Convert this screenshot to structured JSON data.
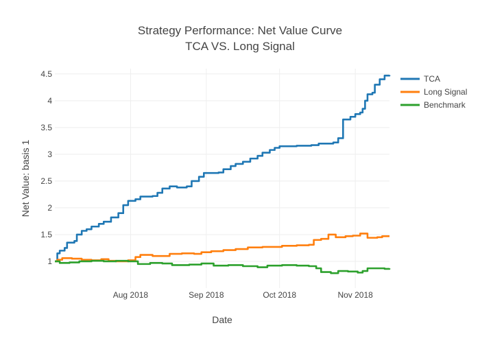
{
  "chart_data": {
    "type": "line",
    "title": "Strategy Performance: Net Value Curve",
    "subtitle": "TCA VS. Long Signal",
    "xlabel": "Date",
    "ylabel": "Net Value: basis 1",
    "xlim": [
      "2018-07-01",
      "2018-11-15"
    ],
    "ylim": [
      0.5,
      4.6
    ],
    "x_ticks": [
      "2018-08-01",
      "2018-09-01",
      "2018-10-01",
      "2018-11-01"
    ],
    "x_tick_labels": [
      "Aug 2018",
      "Sep 2018",
      "Oct 2018",
      "Nov 2018"
    ],
    "y_ticks": [
      1,
      1.5,
      2,
      2.5,
      3,
      3.5,
      4,
      4.5
    ],
    "y_tick_labels": [
      "1",
      "1.5",
      "2",
      "2.5",
      "3",
      "3.5",
      "4",
      "4.5"
    ],
    "grid": true,
    "legend_position": "top-right",
    "series": [
      {
        "name": "TCA",
        "color": "#1f77b4",
        "points": [
          [
            "2018-07-01",
            1.0
          ],
          [
            "2018-07-02",
            1.15
          ],
          [
            "2018-07-03",
            1.2
          ],
          [
            "2018-07-05",
            1.25
          ],
          [
            "2018-07-06",
            1.35
          ],
          [
            "2018-07-09",
            1.38
          ],
          [
            "2018-07-10",
            1.5
          ],
          [
            "2018-07-12",
            1.57
          ],
          [
            "2018-07-14",
            1.6
          ],
          [
            "2018-07-16",
            1.65
          ],
          [
            "2018-07-19",
            1.7
          ],
          [
            "2018-07-21",
            1.74
          ],
          [
            "2018-07-24",
            1.82
          ],
          [
            "2018-07-27",
            1.9
          ],
          [
            "2018-07-29",
            2.05
          ],
          [
            "2018-07-31",
            2.13
          ],
          [
            "2018-08-03",
            2.16
          ],
          [
            "2018-08-05",
            2.21
          ],
          [
            "2018-08-10",
            2.22
          ],
          [
            "2018-08-12",
            2.28
          ],
          [
            "2018-08-14",
            2.36
          ],
          [
            "2018-08-17",
            2.4
          ],
          [
            "2018-08-20",
            2.38
          ],
          [
            "2018-08-24",
            2.4
          ],
          [
            "2018-08-26",
            2.5
          ],
          [
            "2018-08-29",
            2.58
          ],
          [
            "2018-08-31",
            2.65
          ],
          [
            "2018-09-06",
            2.66
          ],
          [
            "2018-09-08",
            2.72
          ],
          [
            "2018-09-11",
            2.78
          ],
          [
            "2018-09-13",
            2.82
          ],
          [
            "2018-09-16",
            2.86
          ],
          [
            "2018-09-19",
            2.92
          ],
          [
            "2018-09-22",
            2.97
          ],
          [
            "2018-09-24",
            3.03
          ],
          [
            "2018-09-27",
            3.08
          ],
          [
            "2018-09-29",
            3.12
          ],
          [
            "2018-10-01",
            3.15
          ],
          [
            "2018-10-08",
            3.16
          ],
          [
            "2018-10-14",
            3.17
          ],
          [
            "2018-10-17",
            3.2
          ],
          [
            "2018-10-23",
            3.22
          ],
          [
            "2018-10-25",
            3.3
          ],
          [
            "2018-10-27",
            3.65
          ],
          [
            "2018-10-30",
            3.7
          ],
          [
            "2018-11-01",
            3.75
          ],
          [
            "2018-11-03",
            3.78
          ],
          [
            "2018-11-04",
            3.85
          ],
          [
            "2018-11-05",
            4.0
          ],
          [
            "2018-11-06",
            4.12
          ],
          [
            "2018-11-08",
            4.15
          ],
          [
            "2018-11-09",
            4.3
          ],
          [
            "2018-11-11",
            4.4
          ],
          [
            "2018-11-13",
            4.47
          ],
          [
            "2018-11-15",
            4.48
          ]
        ]
      },
      {
        "name": "Long Signal",
        "color": "#ff7f0e",
        "points": [
          [
            "2018-07-01",
            1.0
          ],
          [
            "2018-07-02",
            1.03
          ],
          [
            "2018-07-04",
            1.06
          ],
          [
            "2018-07-08",
            1.05
          ],
          [
            "2018-07-12",
            1.03
          ],
          [
            "2018-07-16",
            1.02
          ],
          [
            "2018-07-20",
            1.04
          ],
          [
            "2018-07-23",
            1.01
          ],
          [
            "2018-07-26",
            1.0
          ],
          [
            "2018-07-31",
            1.02
          ],
          [
            "2018-08-03",
            1.08
          ],
          [
            "2018-08-05",
            1.12
          ],
          [
            "2018-08-10",
            1.1
          ],
          [
            "2018-08-14",
            1.1
          ],
          [
            "2018-08-17",
            1.14
          ],
          [
            "2018-08-22",
            1.15
          ],
          [
            "2018-08-27",
            1.14
          ],
          [
            "2018-08-30",
            1.17
          ],
          [
            "2018-09-03",
            1.19
          ],
          [
            "2018-09-08",
            1.21
          ],
          [
            "2018-09-13",
            1.23
          ],
          [
            "2018-09-18",
            1.26
          ],
          [
            "2018-09-24",
            1.27
          ],
          [
            "2018-09-28",
            1.27
          ],
          [
            "2018-10-02",
            1.29
          ],
          [
            "2018-10-08",
            1.3
          ],
          [
            "2018-10-13",
            1.31
          ],
          [
            "2018-10-15",
            1.4
          ],
          [
            "2018-10-18",
            1.42
          ],
          [
            "2018-10-21",
            1.5
          ],
          [
            "2018-10-24",
            1.45
          ],
          [
            "2018-10-28",
            1.47
          ],
          [
            "2018-10-31",
            1.48
          ],
          [
            "2018-11-03",
            1.52
          ],
          [
            "2018-11-06",
            1.44
          ],
          [
            "2018-11-10",
            1.45
          ],
          [
            "2018-11-12",
            1.47
          ],
          [
            "2018-11-15",
            1.47
          ]
        ]
      },
      {
        "name": "Benchmark",
        "color": "#2ca02c",
        "points": [
          [
            "2018-07-01",
            1.0
          ],
          [
            "2018-07-03",
            0.97
          ],
          [
            "2018-07-07",
            0.98
          ],
          [
            "2018-07-11",
            1.0
          ],
          [
            "2018-07-16",
            1.01
          ],
          [
            "2018-07-21",
            1.0
          ],
          [
            "2018-07-26",
            1.01
          ],
          [
            "2018-07-31",
            1.0
          ],
          [
            "2018-08-04",
            0.95
          ],
          [
            "2018-08-09",
            0.97
          ],
          [
            "2018-08-14",
            0.96
          ],
          [
            "2018-08-18",
            0.93
          ],
          [
            "2018-08-25",
            0.94
          ],
          [
            "2018-08-30",
            0.96
          ],
          [
            "2018-09-04",
            0.92
          ],
          [
            "2018-09-10",
            0.93
          ],
          [
            "2018-09-16",
            0.91
          ],
          [
            "2018-09-22",
            0.89
          ],
          [
            "2018-09-26",
            0.92
          ],
          [
            "2018-10-02",
            0.93
          ],
          [
            "2018-10-08",
            0.92
          ],
          [
            "2018-10-13",
            0.91
          ],
          [
            "2018-10-16",
            0.87
          ],
          [
            "2018-10-18",
            0.8
          ],
          [
            "2018-10-22",
            0.78
          ],
          [
            "2018-10-25",
            0.82
          ],
          [
            "2018-10-29",
            0.81
          ],
          [
            "2018-11-02",
            0.79
          ],
          [
            "2018-11-04",
            0.82
          ],
          [
            "2018-11-06",
            0.87
          ],
          [
            "2018-11-10",
            0.87
          ],
          [
            "2018-11-13",
            0.86
          ],
          [
            "2018-11-15",
            0.87
          ]
        ]
      }
    ]
  }
}
